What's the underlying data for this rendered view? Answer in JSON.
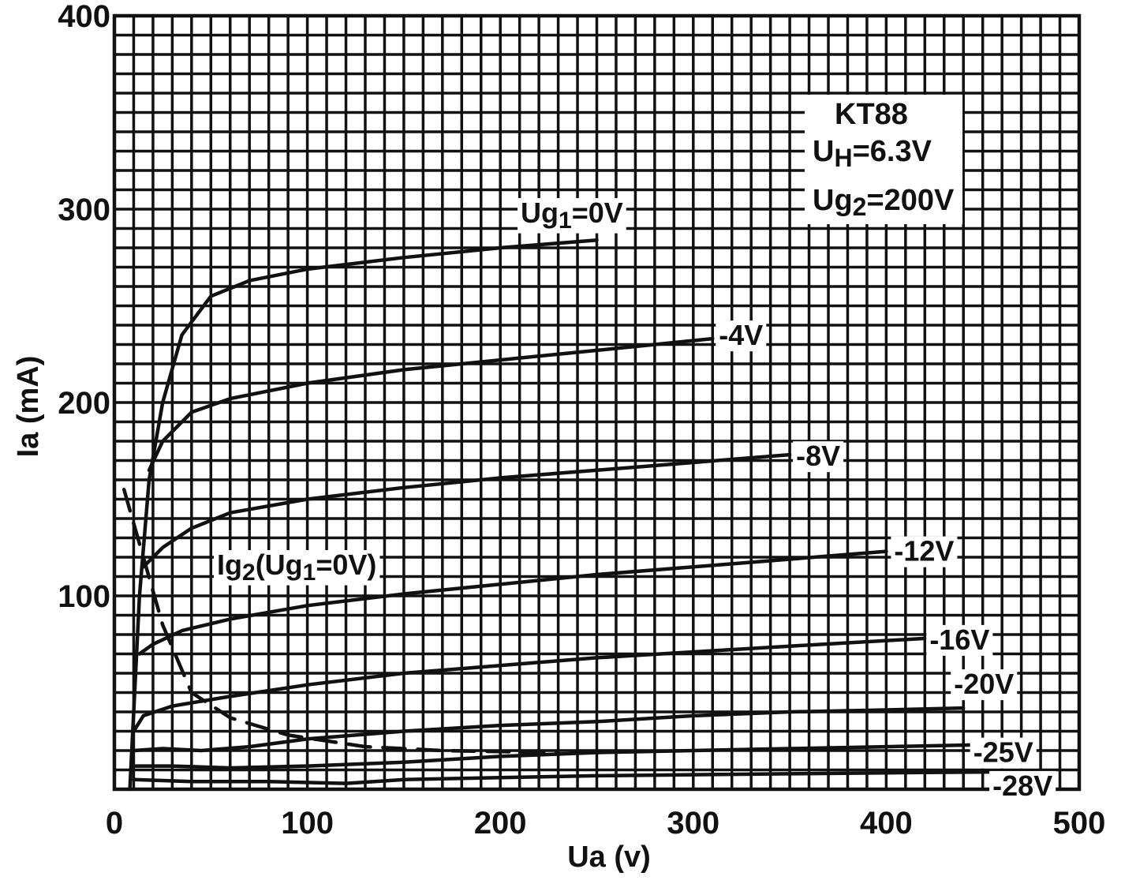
{
  "chart_data": {
    "type": "line",
    "xlabel": "Ua (v)",
    "ylabel": "Ia (mA)",
    "xlim": [
      0,
      500
    ],
    "ylim": [
      0,
      400
    ],
    "x_ticks": [
      "0",
      "100",
      "200",
      "300",
      "400",
      "500"
    ],
    "y_ticks": [
      "100",
      "200",
      "300",
      "400"
    ],
    "grid": true,
    "grid_step": {
      "x": 10,
      "y": 10
    },
    "annotation": {
      "lines": [
        {
          "main": "KT88",
          "sub": "",
          "rest": ""
        },
        {
          "main": "U",
          "sub": "H",
          "rest": "=6.3V"
        },
        {
          "main": "Ug",
          "sub": "2",
          "rest": "=200V"
        }
      ]
    },
    "series": [
      {
        "name": "Ug1=0V",
        "label_main": "Ug",
        "label_sub": "1",
        "label_rest": "=0V",
        "style": "solid",
        "points": [
          [
            8,
            0
          ],
          [
            13,
            100
          ],
          [
            18,
            160
          ],
          [
            25,
            200
          ],
          [
            35,
            235
          ],
          [
            50,
            255
          ],
          [
            70,
            263
          ],
          [
            100,
            269
          ],
          [
            150,
            275
          ],
          [
            200,
            280
          ],
          [
            250,
            284
          ]
        ]
      },
      {
        "name": "-4V",
        "label_main": "-4V",
        "label_sub": "",
        "label_rest": "",
        "style": "solid",
        "points": [
          [
            18,
            165
          ],
          [
            25,
            180
          ],
          [
            40,
            195
          ],
          [
            60,
            202
          ],
          [
            100,
            210
          ],
          [
            150,
            217
          ],
          [
            200,
            222
          ],
          [
            250,
            227
          ],
          [
            310,
            233
          ]
        ]
      },
      {
        "name": "-8V",
        "label_main": "-8V",
        "label_sub": "",
        "label_rest": "",
        "style": "solid",
        "points": [
          [
            15,
            115
          ],
          [
            25,
            125
          ],
          [
            40,
            135
          ],
          [
            60,
            143
          ],
          [
            100,
            150
          ],
          [
            150,
            156
          ],
          [
            200,
            161
          ],
          [
            250,
            165
          ],
          [
            300,
            169
          ],
          [
            350,
            173
          ]
        ]
      },
      {
        "name": "-12V",
        "label_main": "-12V",
        "label_sub": "",
        "label_rest": "",
        "style": "solid",
        "points": [
          [
            13,
            70
          ],
          [
            20,
            75
          ],
          [
            35,
            82
          ],
          [
            60,
            88
          ],
          [
            100,
            95
          ],
          [
            150,
            101
          ],
          [
            200,
            106
          ],
          [
            250,
            111
          ],
          [
            300,
            115
          ],
          [
            350,
            119
          ],
          [
            400,
            123
          ]
        ]
      },
      {
        "name": "-16V",
        "label_main": "-16V",
        "label_sub": "",
        "label_rest": "",
        "style": "solid",
        "points": [
          [
            10,
            30
          ],
          [
            15,
            38
          ],
          [
            30,
            43
          ],
          [
            60,
            48
          ],
          [
            100,
            54
          ],
          [
            150,
            60
          ],
          [
            200,
            64
          ],
          [
            250,
            68
          ],
          [
            300,
            71
          ],
          [
            350,
            74
          ],
          [
            420,
            78
          ]
        ]
      },
      {
        "name": "-20V",
        "label_main": "-20V",
        "label_sub": "",
        "label_rest": "",
        "style": "solid",
        "points": [
          [
            10,
            20
          ],
          [
            25,
            21
          ],
          [
            45,
            20
          ],
          [
            70,
            22
          ],
          [
            100,
            26
          ],
          [
            150,
            30
          ],
          [
            200,
            33
          ],
          [
            250,
            35
          ],
          [
            300,
            38
          ],
          [
            350,
            40
          ],
          [
            400,
            41
          ],
          [
            440,
            42
          ]
        ]
      },
      {
        "name": "-25V",
        "label_main": "-25V",
        "label_sub": "",
        "label_rest": "",
        "style": "solid",
        "points": [
          [
            10,
            12
          ],
          [
            30,
            12
          ],
          [
            60,
            11
          ],
          [
            100,
            12
          ],
          [
            150,
            14
          ],
          [
            200,
            17
          ],
          [
            250,
            19
          ],
          [
            300,
            20
          ],
          [
            350,
            21
          ],
          [
            400,
            22
          ],
          [
            450,
            23
          ]
        ]
      },
      {
        "name": "-28V",
        "label_main": "-28V",
        "label_sub": "",
        "label_rest": "",
        "style": "solid",
        "points": [
          [
            10,
            5
          ],
          [
            40,
            4
          ],
          [
            80,
            4
          ],
          [
            120,
            3
          ],
          [
            150,
            5
          ],
          [
            200,
            6
          ],
          [
            250,
            7
          ],
          [
            300,
            7.5
          ],
          [
            350,
            8
          ],
          [
            400,
            8.5
          ],
          [
            460,
            9
          ]
        ]
      },
      {
        "name": "Ig2(Ug1=0V)",
        "label_main": "Ig",
        "label_sub": "2",
        "label_rest": "(Ug",
        "label_sub2": "1",
        "label_rest2": "=0V)",
        "style": "dashed",
        "points": [
          [
            5,
            155
          ],
          [
            15,
            120
          ],
          [
            25,
            85
          ],
          [
            40,
            50
          ],
          [
            60,
            37
          ],
          [
            90,
            28
          ],
          [
            130,
            22
          ],
          [
            170,
            20
          ],
          [
            230,
            19
          ]
        ]
      }
    ]
  }
}
